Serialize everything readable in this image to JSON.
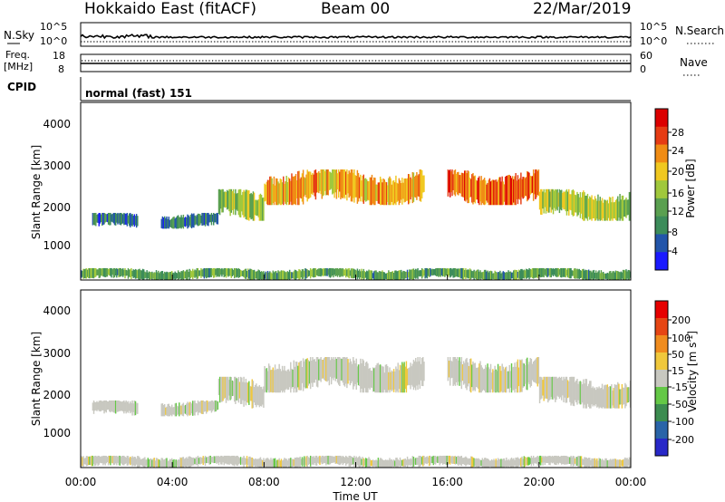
{
  "header": {
    "station": "Hokkaido East (fitACF)",
    "beam": "Beam 00",
    "date": "22/Mar/2019"
  },
  "noise_panel": {
    "left_label": "N.Sky",
    "right_label": "N.Search",
    "left_ticks": [
      "10^5",
      "10^0"
    ],
    "right_ticks": [
      "10^5",
      "10^0"
    ]
  },
  "freq_panel": {
    "left_label_1": "Freq.",
    "left_label_2": "[MHz]",
    "right_label": "Nave",
    "left_ticks": [
      "18",
      "8"
    ],
    "right_ticks": [
      "60",
      "0"
    ]
  },
  "cpid_panel": {
    "left_label": "CPID",
    "text": "normal (fast) 151"
  },
  "x_axis": {
    "label": "Time UT",
    "ticks": [
      "00:00",
      "04:00",
      "08:00",
      "12:00",
      "16:00",
      "20:00",
      "00:00"
    ]
  },
  "power_panel": {
    "ylabel": "Slant Range [km]",
    "yticks": [
      "4000",
      "3000",
      "2000",
      "1000"
    ],
    "colorbar_label": "Power [dB]",
    "colorbar_ticks": [
      "28",
      "24",
      "20",
      "16",
      "12",
      "8",
      "4"
    ],
    "colors": [
      "#1a1aff",
      "#2255aa",
      "#3c8c5a",
      "#5aa050",
      "#a0c83c",
      "#f0c820",
      "#f08c14",
      "#e63c14",
      "#dc0000"
    ]
  },
  "velocity_panel": {
    "ylabel": "Slant Range [km]",
    "yticks": [
      "4000",
      "3000",
      "2000",
      "1000"
    ],
    "colorbar_label": "Velocity [m s^-1]",
    "colorbar_ticks": [
      "200",
      "100",
      "50",
      "15",
      "-15",
      "-50",
      "-100",
      "-200"
    ],
    "colors": [
      "#2828c8",
      "#2a64a8",
      "#3c8c50",
      "#64c846",
      "#c8c8c0",
      "#f0c83c",
      "#f08c1e",
      "#e64614",
      "#e60000"
    ]
  },
  "chart_data": [
    {
      "type": "heatmap",
      "title": "Power",
      "xlabel": "Time UT",
      "ylabel": "Slant Range [km]",
      "xlim": [
        "00:00",
        "24:00"
      ],
      "ylim": [
        0,
        4500
      ],
      "colorbar": {
        "label": "Power [dB]",
        "range": [
          0,
          32
        ],
        "ticks": [
          4,
          8,
          12,
          16,
          20,
          24,
          28
        ]
      },
      "echo_regions": [
        {
          "t_start": 0.5,
          "t_end": 2.5,
          "range_low": 1300,
          "range_high": 1700,
          "power_db": 6
        },
        {
          "t_start": 3.5,
          "t_end": 6.0,
          "range_low": 1300,
          "range_high": 1700,
          "power_db": 6
        },
        {
          "t_start": 6.0,
          "t_end": 8.0,
          "range_low": 1500,
          "range_high": 2300,
          "power_db": 14
        },
        {
          "t_start": 8.0,
          "t_end": 15.0,
          "range_low": 1900,
          "range_high": 2800,
          "power_db": 20
        },
        {
          "t_start": 16.0,
          "t_end": 20.0,
          "range_low": 1900,
          "range_high": 2800,
          "power_db": 24
        },
        {
          "t_start": 20.0,
          "t_end": 24.0,
          "range_low": 1500,
          "range_high": 2300,
          "power_db": 14
        },
        {
          "t_start": 0.0,
          "t_end": 24.0,
          "range_low": 0,
          "range_high": 300,
          "power_db": 10
        }
      ]
    },
    {
      "type": "heatmap",
      "title": "Velocity",
      "xlabel": "Time UT",
      "ylabel": "Slant Range [km]",
      "xlim": [
        "00:00",
        "24:00"
      ],
      "ylim": [
        0,
        4500
      ],
      "colorbar": {
        "label": "Velocity [m s^-1]",
        "range": [
          -250,
          250
        ],
        "ticks": [
          200,
          100,
          50,
          15,
          -15,
          -50,
          -100,
          -200
        ]
      },
      "echo_regions": [
        {
          "t_start": 0.5,
          "t_end": 2.5,
          "range_low": 1300,
          "range_high": 1700,
          "velocity": 0
        },
        {
          "t_start": 3.5,
          "t_end": 6.0,
          "range_low": 1300,
          "range_high": 1700,
          "velocity": 0
        },
        {
          "t_start": 6.0,
          "t_end": 8.0,
          "range_low": 1500,
          "range_high": 2300,
          "velocity": 0
        },
        {
          "t_start": 8.0,
          "t_end": 15.0,
          "range_low": 1900,
          "range_high": 2800,
          "velocity": 0
        },
        {
          "t_start": 16.0,
          "t_end": 20.0,
          "range_low": 1900,
          "range_high": 2800,
          "velocity": 0
        },
        {
          "t_start": 20.0,
          "t_end": 24.0,
          "range_low": 1500,
          "range_high": 2300,
          "velocity": 0
        },
        {
          "t_start": 0.0,
          "t_end": 24.0,
          "range_low": 0,
          "range_high": 300,
          "velocity": -20
        }
      ]
    }
  ]
}
